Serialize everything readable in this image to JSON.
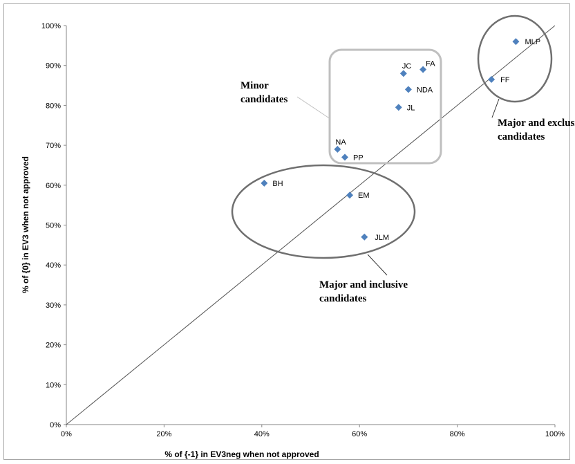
{
  "chart_data": {
    "type": "scatter",
    "xlabel": "% of {-1} in EV3neg  when not approved",
    "ylabel": "% of {0} in EV3 when not approved",
    "xlim": [
      0,
      1
    ],
    "ylim": [
      0,
      1
    ],
    "x_ticks": [
      "0%",
      "20%",
      "40%",
      "60%",
      "80%",
      "100%"
    ],
    "y_ticks": [
      "0%",
      "10%",
      "20%",
      "30%",
      "40%",
      "50%",
      "60%",
      "70%",
      "80%",
      "90%",
      "100%"
    ],
    "grid": false,
    "marker_color": "#4f81bd",
    "points": [
      {
        "label": "MLP",
        "x": 0.92,
        "y": 0.96
      },
      {
        "label": "FF",
        "x": 0.87,
        "y": 0.865
      },
      {
        "label": "FA",
        "x": 0.73,
        "y": 0.89
      },
      {
        "label": "JC",
        "x": 0.69,
        "y": 0.88
      },
      {
        "label": "NDA",
        "x": 0.7,
        "y": 0.84
      },
      {
        "label": "JL",
        "x": 0.68,
        "y": 0.795
      },
      {
        "label": "NA",
        "x": 0.555,
        "y": 0.69
      },
      {
        "label": "PP",
        "x": 0.57,
        "y": 0.67
      },
      {
        "label": "BH",
        "x": 0.405,
        "y": 0.605
      },
      {
        "label": "EM",
        "x": 0.58,
        "y": 0.575
      },
      {
        "label": "JLM",
        "x": 0.61,
        "y": 0.47
      }
    ],
    "reference_line": {
      "from": [
        0,
        0
      ],
      "to": [
        1,
        1
      ]
    },
    "annotations": [
      {
        "lines": [
          "Minor",
          "candidates"
        ],
        "group": "minor"
      },
      {
        "lines": [
          "Major  and exclusive",
          "candidates"
        ],
        "group": "exclusive"
      },
      {
        "lines": [
          "Major and inclusive",
          "candidates"
        ],
        "group": "inclusive"
      }
    ]
  }
}
